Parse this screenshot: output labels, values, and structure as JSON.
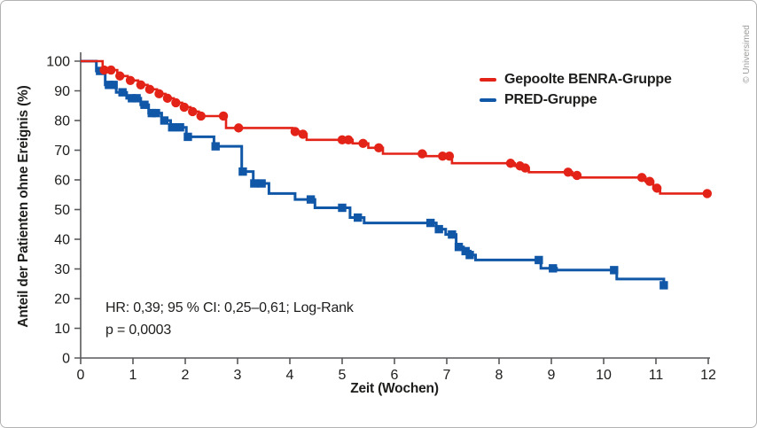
{
  "credit": "© Universimed",
  "annotation": {
    "line1": "HR: 0,39; 95 % CI: 0,25–0,61; Log-Rank",
    "line2": "p = 0,0003"
  },
  "colors": {
    "benra_red": "#e42318",
    "pred_blue": "#1157a8",
    "axis": "#58595b",
    "text": "#1d1d1b",
    "credit_gray": "#9d9d9c"
  },
  "chart_data": {
    "type": "line",
    "subtype": "kaplan_meier_step_curve",
    "title": "",
    "xlabel": "Zeit (Wochen)",
    "ylabel": "Anteil der Patienten ohne Ereignis (%)",
    "xlim": [
      0,
      12
    ],
    "ylim": [
      0,
      100
    ],
    "x_ticks": [
      0,
      1,
      2,
      3,
      4,
      5,
      6,
      7,
      8,
      9,
      10,
      11,
      12
    ],
    "y_ticks": [
      0,
      10,
      20,
      30,
      40,
      50,
      60,
      70,
      80,
      90,
      100
    ],
    "grid": false,
    "legend_position": "top-right-inside",
    "stats": {
      "hr": "0,39",
      "ci95": "0,25–0,61",
      "test": "Log-Rank",
      "p": "0,0003"
    },
    "series": [
      {
        "name": "PRED-Gruppe",
        "color": "#1157a8",
        "marker": "square",
        "line_width": 3,
        "end_x": 11.22,
        "steps": [
          [
            0,
            100
          ],
          [
            0.3,
            96.7
          ],
          [
            0.47,
            92
          ],
          [
            0.68,
            89.5
          ],
          [
            0.88,
            87.5
          ],
          [
            1.15,
            85.3
          ],
          [
            1.3,
            82.5
          ],
          [
            1.55,
            80
          ],
          [
            1.72,
            77.7
          ],
          [
            2.02,
            74.5
          ],
          [
            2.55,
            71.3
          ],
          [
            3.08,
            62.8
          ],
          [
            3.3,
            58.8
          ],
          [
            3.6,
            55.4
          ],
          [
            4.1,
            53.4
          ],
          [
            4.48,
            50.6
          ],
          [
            5.15,
            47.3
          ],
          [
            5.42,
            45.5
          ],
          [
            6.8,
            43.4
          ],
          [
            6.98,
            41.6
          ],
          [
            7.18,
            37.4
          ],
          [
            7.32,
            36
          ],
          [
            7.45,
            34.7
          ],
          [
            7.55,
            33
          ],
          [
            8.8,
            30.2
          ],
          [
            9.1,
            29.6
          ],
          [
            10.25,
            26.6
          ],
          [
            11.15,
            24.5
          ]
        ],
        "censor_marks": [
          [
            0.37,
            96.7
          ],
          [
            0.54,
            92
          ],
          [
            0.63,
            92
          ],
          [
            0.8,
            89.5
          ],
          [
            0.98,
            87.5
          ],
          [
            1.07,
            87.5
          ],
          [
            1.22,
            85.3
          ],
          [
            1.36,
            82.5
          ],
          [
            1.44,
            82.5
          ],
          [
            1.6,
            80
          ],
          [
            1.75,
            77.7
          ],
          [
            1.9,
            77.7
          ],
          [
            2.05,
            74.5
          ],
          [
            2.58,
            71.3
          ],
          [
            3.1,
            62.8
          ],
          [
            3.32,
            58.8
          ],
          [
            3.46,
            58.8
          ],
          [
            4.4,
            53.4
          ],
          [
            5.0,
            50.6
          ],
          [
            5.3,
            47.3
          ],
          [
            6.69,
            45.5
          ],
          [
            6.85,
            43.4
          ],
          [
            7.1,
            41.6
          ],
          [
            7.23,
            37.4
          ],
          [
            7.36,
            36
          ],
          [
            7.44,
            34.7
          ],
          [
            8.76,
            33
          ],
          [
            9.03,
            30.2
          ],
          [
            10.2,
            29.6
          ],
          [
            11.15,
            24.5
          ]
        ]
      },
      {
        "name": "Gepoolte BENRA-Gruppe",
        "color": "#e42318",
        "marker": "circle",
        "line_width": 2.6,
        "end_x": 12.0,
        "steps": [
          [
            0,
            100
          ],
          [
            0.42,
            97
          ],
          [
            0.7,
            95
          ],
          [
            0.9,
            93.5
          ],
          [
            1.1,
            92
          ],
          [
            1.28,
            90.5
          ],
          [
            1.46,
            89
          ],
          [
            1.62,
            87.5
          ],
          [
            1.78,
            86
          ],
          [
            1.94,
            84.5
          ],
          [
            2.1,
            83
          ],
          [
            2.26,
            81.5
          ],
          [
            2.78,
            77.5
          ],
          [
            4.05,
            76.3
          ],
          [
            4.2,
            75.4
          ],
          [
            4.32,
            73.5
          ],
          [
            5.2,
            72.3
          ],
          [
            5.5,
            70.8
          ],
          [
            5.78,
            68.8
          ],
          [
            6.6,
            68
          ],
          [
            7.1,
            65.6
          ],
          [
            8.3,
            64.7
          ],
          [
            8.5,
            64
          ],
          [
            8.57,
            62.6
          ],
          [
            9.4,
            61.5
          ],
          [
            9.55,
            60.8
          ],
          [
            10.8,
            59.5
          ],
          [
            10.95,
            57.2
          ],
          [
            11.08,
            55.4
          ]
        ],
        "censor_marks": [
          [
            0.45,
            97
          ],
          [
            0.58,
            97
          ],
          [
            0.75,
            95
          ],
          [
            0.95,
            93.5
          ],
          [
            1.15,
            92
          ],
          [
            1.32,
            90.5
          ],
          [
            1.5,
            89
          ],
          [
            1.66,
            87.5
          ],
          [
            1.82,
            86
          ],
          [
            1.98,
            84.5
          ],
          [
            2.14,
            83
          ],
          [
            2.3,
            81.5
          ],
          [
            2.73,
            81.5
          ],
          [
            3.02,
            77.5
          ],
          [
            4.1,
            76.3
          ],
          [
            4.25,
            75.4
          ],
          [
            5.0,
            73.5
          ],
          [
            5.12,
            73.5
          ],
          [
            5.4,
            72.3
          ],
          [
            5.7,
            70.8
          ],
          [
            6.53,
            68.8
          ],
          [
            6.92,
            68
          ],
          [
            7.05,
            68
          ],
          [
            8.22,
            65.6
          ],
          [
            8.4,
            64.7
          ],
          [
            8.5,
            64
          ],
          [
            9.32,
            62.6
          ],
          [
            9.49,
            61.5
          ],
          [
            10.73,
            60.8
          ],
          [
            10.88,
            59.5
          ],
          [
            11.02,
            57.2
          ],
          [
            11.98,
            55.4
          ]
        ]
      }
    ]
  }
}
